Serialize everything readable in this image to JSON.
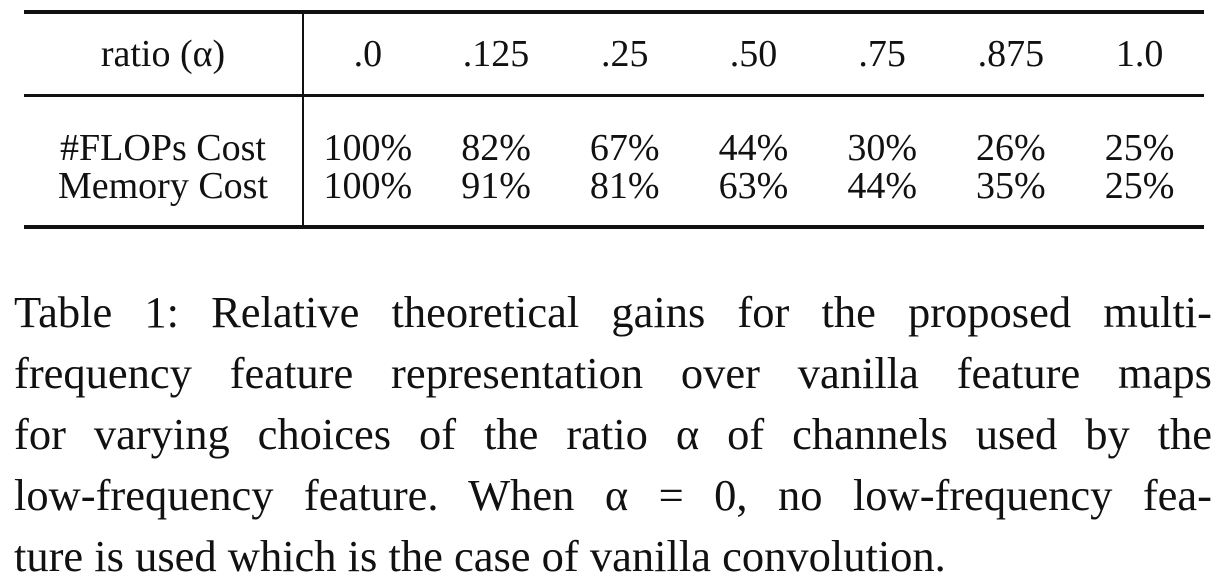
{
  "table": {
    "header_label": "ratio (α)",
    "ratios": [
      ".0",
      ".125",
      ".25",
      ".50",
      ".75",
      ".875",
      "1.0"
    ],
    "rows": [
      {
        "label": "#FLOPs Cost",
        "values": [
          "100%",
          "82%",
          "67%",
          "44%",
          "30%",
          "26%",
          "25%"
        ]
      },
      {
        "label": "Memory Cost",
        "values": [
          "100%",
          "91%",
          "81%",
          "63%",
          "44%",
          "35%",
          "25%"
        ]
      }
    ]
  },
  "caption": {
    "lines": [
      "Table 1: Relative theoretical gains for the proposed multi-",
      "frequency feature representation over vanilla feature maps",
      "for varying choices of the ratio α of channels used by the",
      "low-frequency feature. When α = 0, no low-frequency fea-",
      "ture is used which is the case of vanilla convolution."
    ]
  }
}
